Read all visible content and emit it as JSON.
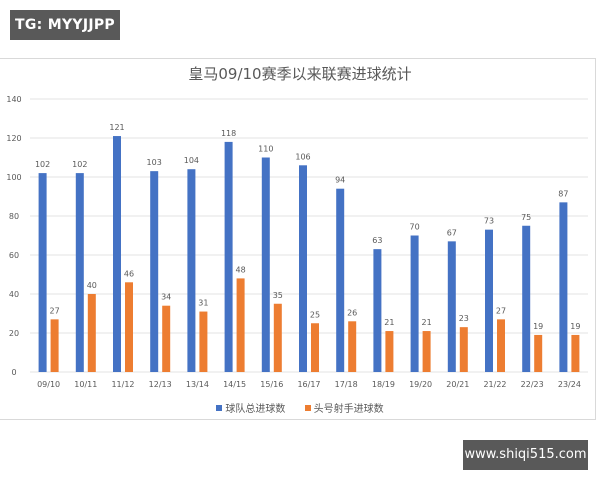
{
  "badge": {
    "text": "TG: MYYJJPP"
  },
  "watermark": {
    "text": "www.shiqi515.com"
  },
  "colors": {
    "team": "#4472C4",
    "scorer": "#ED7D31",
    "grid": "#e3e3e3",
    "text": "#595959"
  },
  "chart_data": {
    "type": "bar",
    "title": "皇马09/10赛季以来联赛进球统计",
    "xlabel": "",
    "ylabel": "",
    "ylim": [
      0,
      140
    ],
    "yticks": [
      0,
      20,
      40,
      60,
      80,
      100,
      120,
      140
    ],
    "grid": true,
    "legend_position": "bottom",
    "categories": [
      "09/10",
      "10/11",
      "11/12",
      "12/13",
      "13/14",
      "14/15",
      "15/16",
      "16/17",
      "17/18",
      "18/19",
      "19/20",
      "20/21",
      "21/22",
      "22/23",
      "23/24"
    ],
    "series": [
      {
        "name": "球队总进球数",
        "color": "#4472C4",
        "values": [
          102,
          102,
          121,
          103,
          104,
          118,
          110,
          106,
          94,
          63,
          70,
          67,
          73,
          75,
          87
        ]
      },
      {
        "name": "头号射手进球数",
        "color": "#ED7D31",
        "values": [
          27,
          40,
          46,
          34,
          31,
          48,
          35,
          25,
          26,
          21,
          21,
          23,
          27,
          19,
          19
        ]
      }
    ]
  }
}
